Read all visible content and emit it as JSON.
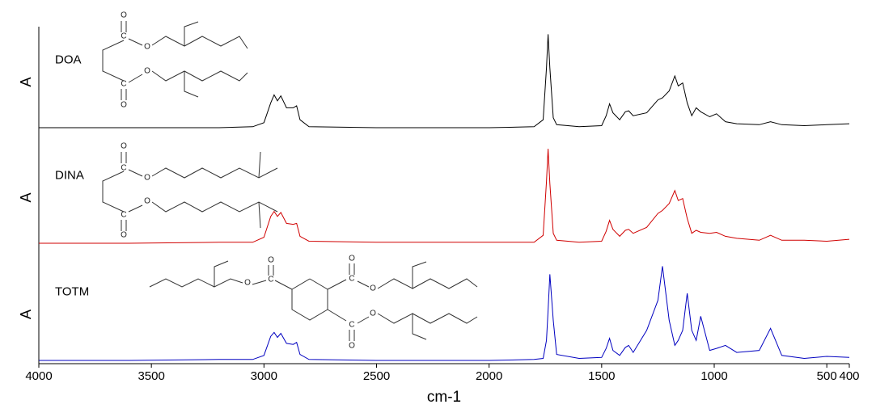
{
  "chart_data": [
    {
      "type": "line",
      "label": "DOA",
      "ylabel": "A",
      "color": "#000000",
      "atoms": [
        "O",
        "C",
        "O",
        "O",
        "C",
        "O"
      ],
      "x": [
        4000,
        3600,
        3200,
        3050,
        3000,
        2970,
        2955,
        2940,
        2925,
        2900,
        2870,
        2855,
        2840,
        2800,
        2500,
        2000,
        1800,
        1760,
        1745,
        1738,
        1730,
        1715,
        1700,
        1600,
        1500,
        1480,
        1465,
        1450,
        1420,
        1395,
        1380,
        1360,
        1300,
        1250,
        1230,
        1200,
        1175,
        1160,
        1140,
        1120,
        1100,
        1080,
        1060,
        1020,
        990,
        950,
        900,
        800,
        750,
        700,
        600,
        500,
        400
      ],
      "values": [
        0,
        0,
        0,
        0.01,
        0.05,
        0.25,
        0.33,
        0.27,
        0.32,
        0.2,
        0.2,
        0.22,
        0.08,
        0.01,
        0,
        0,
        0.01,
        0.08,
        0.6,
        0.94,
        0.6,
        0.1,
        0.03,
        0.01,
        0.02,
        0.12,
        0.24,
        0.15,
        0.08,
        0.16,
        0.17,
        0.12,
        0.15,
        0.28,
        0.3,
        0.37,
        0.52,
        0.42,
        0.45,
        0.25,
        0.12,
        0.2,
        0.16,
        0.11,
        0.14,
        0.06,
        0.04,
        0.03,
        0.06,
        0.03,
        0.02,
        0.03,
        0.04
      ],
      "xlim": [
        4000,
        400
      ],
      "ylim": [
        0,
        1
      ]
    },
    {
      "type": "line",
      "label": "DINA",
      "ylabel": "A",
      "color": "#d00000",
      "atoms": [
        "O",
        "C",
        "O",
        "O",
        "C",
        "O"
      ],
      "x": [
        4000,
        3600,
        3200,
        3050,
        3000,
        2970,
        2955,
        2940,
        2925,
        2900,
        2870,
        2855,
        2840,
        2800,
        2500,
        2000,
        1800,
        1760,
        1745,
        1738,
        1730,
        1715,
        1700,
        1600,
        1500,
        1480,
        1465,
        1450,
        1420,
        1395,
        1380,
        1360,
        1300,
        1250,
        1230,
        1200,
        1175,
        1160,
        1140,
        1120,
        1100,
        1080,
        1060,
        1020,
        990,
        950,
        900,
        800,
        750,
        700,
        600,
        500,
        400
      ],
      "values": [
        0,
        0,
        0.01,
        0.01,
        0.06,
        0.27,
        0.32,
        0.27,
        0.31,
        0.2,
        0.19,
        0.2,
        0.07,
        0.02,
        0.01,
        0.01,
        0.01,
        0.08,
        0.62,
        0.95,
        0.6,
        0.1,
        0.03,
        0.01,
        0.02,
        0.12,
        0.23,
        0.14,
        0.07,
        0.13,
        0.14,
        0.1,
        0.16,
        0.3,
        0.33,
        0.4,
        0.53,
        0.43,
        0.45,
        0.25,
        0.1,
        0.13,
        0.11,
        0.1,
        0.11,
        0.07,
        0.05,
        0.03,
        0.08,
        0.03,
        0.03,
        0.02,
        0.04
      ],
      "xlim": [
        4000,
        400
      ],
      "ylim": [
        0,
        1
      ]
    },
    {
      "type": "line",
      "label": "TOTM",
      "ylabel": "A",
      "color": "#0000c0",
      "atoms": [
        "O",
        "C",
        "O",
        "O",
        "C",
        "O",
        "O",
        "C",
        "O"
      ],
      "x": [
        4000,
        3600,
        3200,
        3050,
        3000,
        2970,
        2955,
        2940,
        2925,
        2900,
        2870,
        2855,
        2840,
        2800,
        2500,
        2000,
        1800,
        1760,
        1745,
        1738,
        1730,
        1715,
        1700,
        1600,
        1500,
        1480,
        1465,
        1450,
        1420,
        1395,
        1380,
        1360,
        1300,
        1250,
        1230,
        1200,
        1175,
        1160,
        1140,
        1120,
        1100,
        1080,
        1060,
        1020,
        990,
        950,
        900,
        800,
        750,
        700,
        600,
        500,
        400
      ],
      "values": [
        0,
        0,
        0.01,
        0.01,
        0.05,
        0.24,
        0.28,
        0.23,
        0.27,
        0.17,
        0.16,
        0.18,
        0.06,
        0.01,
        0,
        0,
        0.01,
        0.02,
        0.2,
        0.5,
        0.86,
        0.4,
        0.06,
        0.02,
        0.03,
        0.12,
        0.22,
        0.1,
        0.05,
        0.13,
        0.15,
        0.08,
        0.3,
        0.6,
        0.94,
        0.4,
        0.15,
        0.2,
        0.3,
        0.67,
        0.3,
        0.2,
        0.44,
        0.1,
        0.12,
        0.15,
        0.08,
        0.1,
        0.32,
        0.05,
        0.02,
        0.04,
        0.03
      ],
      "xlim": [
        4000,
        400
      ],
      "ylim": [
        0,
        1
      ],
      "xlabel": "cm-1",
      "xticks": [
        4000,
        3500,
        3000,
        2500,
        2000,
        1500,
        1000,
        500,
        400
      ]
    }
  ]
}
